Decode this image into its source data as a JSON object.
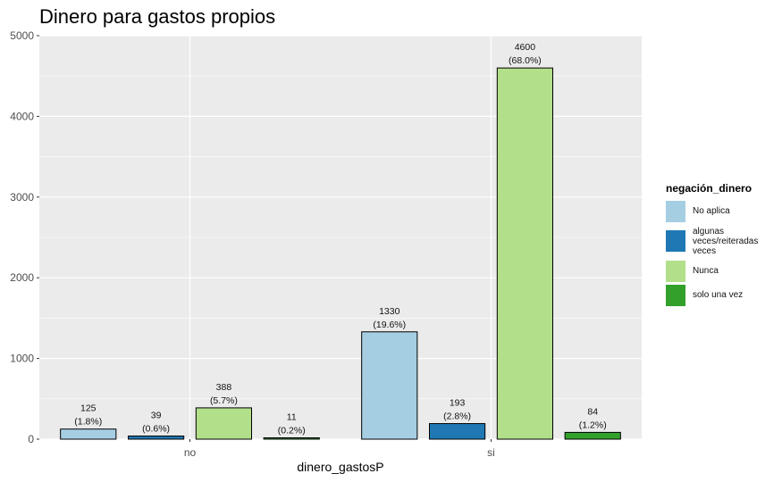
{
  "chart_data": {
    "type": "bar",
    "title": "Dinero para gastos propios",
    "xlabel": "dinero_gastosP",
    "ylabel": "",
    "ylim": [
      0,
      5000
    ],
    "yticks": [
      0,
      1000,
      2000,
      3000,
      4000,
      5000
    ],
    "grid": true,
    "legend_position": "right",
    "legend_title": "negación_dinero",
    "categories": [
      "no",
      "si"
    ],
    "series": [
      {
        "name": " No aplica",
        "color": "#a6cee3",
        "values": [
          125,
          1330
        ],
        "labels": [
          "(1.8%)",
          "(19.6%)"
        ]
      },
      {
        "name": "algunas veces/reiteradas veces",
        "color": "#1f78b4",
        "values": [
          39,
          193
        ],
        "labels": [
          "(0.6%)",
          "(2.8%)"
        ]
      },
      {
        "name": "Nunca",
        "color": "#b2df8a",
        "values": [
          388,
          4600
        ],
        "labels": [
          "(5.7%)",
          "(68.0%)"
        ]
      },
      {
        "name": "solo una vez",
        "color": "#33a02c",
        "values": [
          11,
          84
        ],
        "labels": [
          "(0.2%)",
          "(1.2%)"
        ]
      }
    ]
  }
}
